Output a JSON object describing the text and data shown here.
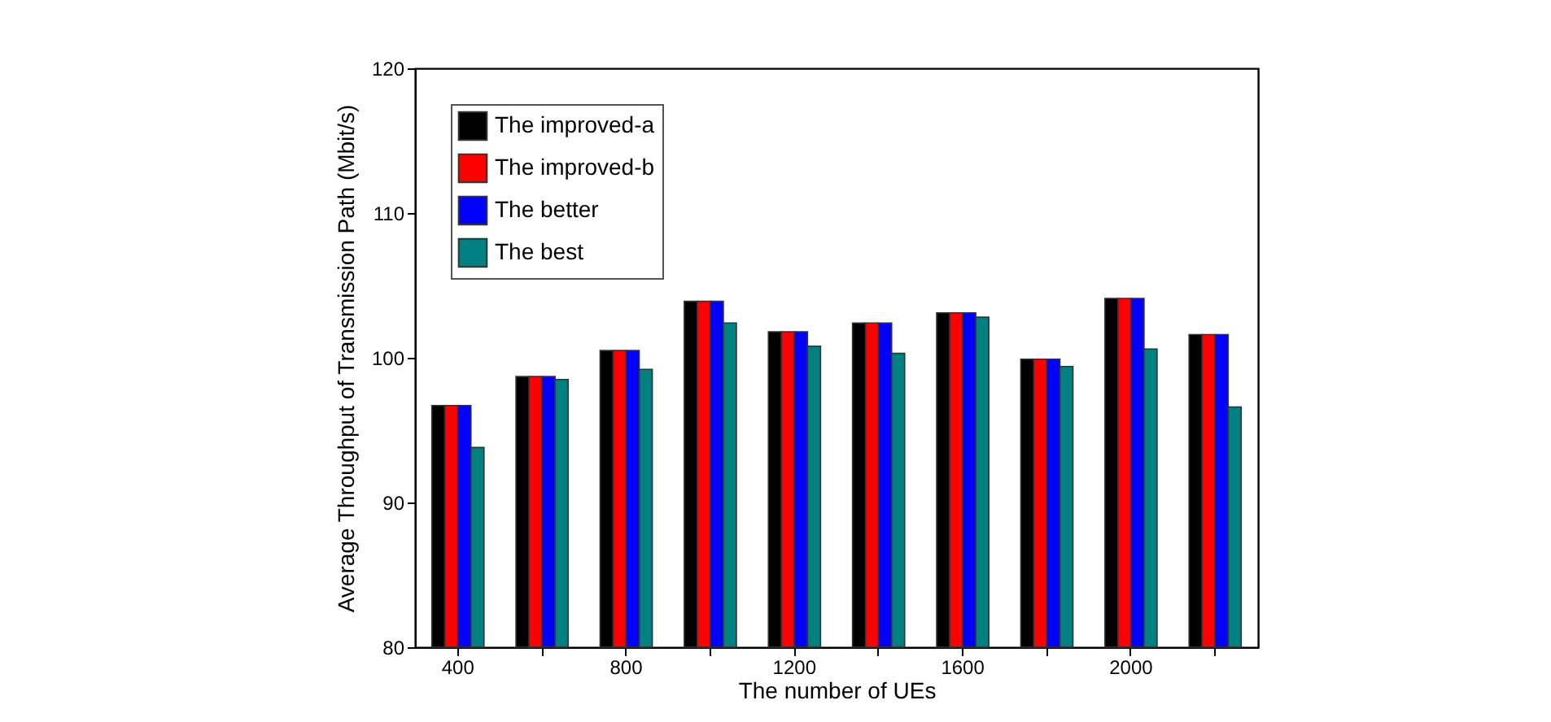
{
  "chart_data": {
    "type": "bar",
    "xlabel": "The number of UEs",
    "ylabel": "Average Throughput of Transmission Path (Mbit/s)",
    "categories": [
      "400",
      null,
      "800",
      null,
      "1200",
      null,
      "1600",
      null,
      "2000",
      null
    ],
    "series": [
      {
        "name": "The improved-a",
        "color": "#000000",
        "values": [
          96.7,
          98.7,
          100.5,
          103.9,
          101.8,
          102.4,
          103.1,
          99.9,
          104.1,
          101.6
        ]
      },
      {
        "name": "The improved-b",
        "color": "#ff0000",
        "values": [
          96.7,
          98.7,
          100.5,
          103.9,
          101.8,
          102.4,
          103.1,
          99.9,
          104.1,
          101.6
        ]
      },
      {
        "name": "The better",
        "color": "#0000ff",
        "values": [
          96.7,
          98.7,
          100.5,
          103.9,
          101.8,
          102.4,
          103.1,
          99.9,
          104.1,
          101.6
        ]
      },
      {
        "name": "The best",
        "color": "#008080",
        "values": [
          93.8,
          98.5,
          99.2,
          102.4,
          100.8,
          100.3,
          102.8,
          99.4,
          100.6,
          96.6
        ]
      }
    ],
    "ylim": [
      80,
      120
    ],
    "yticks": [
      80,
      90,
      100,
      110,
      120
    ],
    "legend": "top left",
    "grid": false
  }
}
